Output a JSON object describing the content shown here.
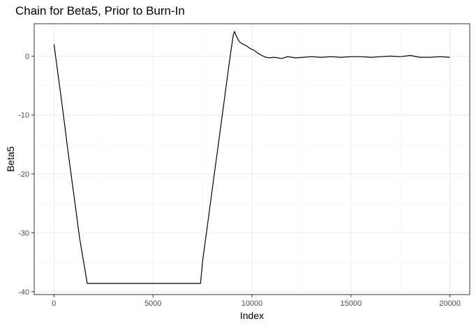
{
  "chart_data": {
    "type": "line",
    "title": "Chain for Beta5, Prior to Burn-In",
    "xlabel": "Index",
    "ylabel": "Beta5",
    "xlim": [
      -1000,
      21000
    ],
    "ylim": [
      -40.5,
      5.5
    ],
    "x_ticks": [
      0,
      5000,
      10000,
      15000,
      20000
    ],
    "x_tick_labels": [
      "0",
      "5000",
      "10000",
      "15000",
      "20000"
    ],
    "y_ticks": [
      0,
      -10,
      -20,
      -30,
      -40
    ],
    "y_tick_labels": [
      "0",
      "-10",
      "-20",
      "-30",
      "-40"
    ],
    "grid": true,
    "legend": "none",
    "line_color": "#000000",
    "panel_border_color": "#333333",
    "grid_major_color": "#ebebeb",
    "grid_minor_color": "#f3f3f3",
    "series": [
      {
        "x": [
          1,
          200,
          400,
          550,
          700,
          900,
          1100,
          1300,
          1500,
          1680,
          2500,
          3500,
          4500,
          5500,
          6500,
          7400,
          7500,
          7700,
          7900,
          8100,
          8300,
          8500,
          8700,
          8900,
          9050,
          9120,
          9200,
          9350,
          9500,
          9700,
          9900,
          10100,
          10300,
          10500,
          10700,
          10900,
          11100,
          11300,
          11500,
          11800,
          12200,
          12600,
          13000,
          13500,
          14000,
          14500,
          15000,
          15500,
          16000,
          16500,
          17000,
          17500,
          18000,
          18500,
          19000,
          19500,
          20000
        ],
        "y": [
          2,
          -3,
          -8,
          -12,
          -16,
          -21,
          -26,
          -31,
          -35,
          -38.6,
          -38.6,
          -38.6,
          -38.6,
          -38.6,
          -38.6,
          -38.6,
          -35,
          -30,
          -25,
          -20,
          -15,
          -10,
          -5,
          0,
          3.5,
          4.2,
          3.5,
          2.5,
          2.1,
          1.8,
          1.3,
          1.0,
          0.5,
          0.1,
          -0.2,
          -0.3,
          -0.2,
          -0.3,
          -0.4,
          -0.1,
          -0.3,
          -0.2,
          -0.1,
          -0.2,
          -0.1,
          -0.2,
          -0.1,
          -0.1,
          -0.2,
          -0.1,
          0.0,
          -0.1,
          0.1,
          -0.2,
          -0.2,
          -0.1,
          -0.2
        ]
      }
    ]
  }
}
